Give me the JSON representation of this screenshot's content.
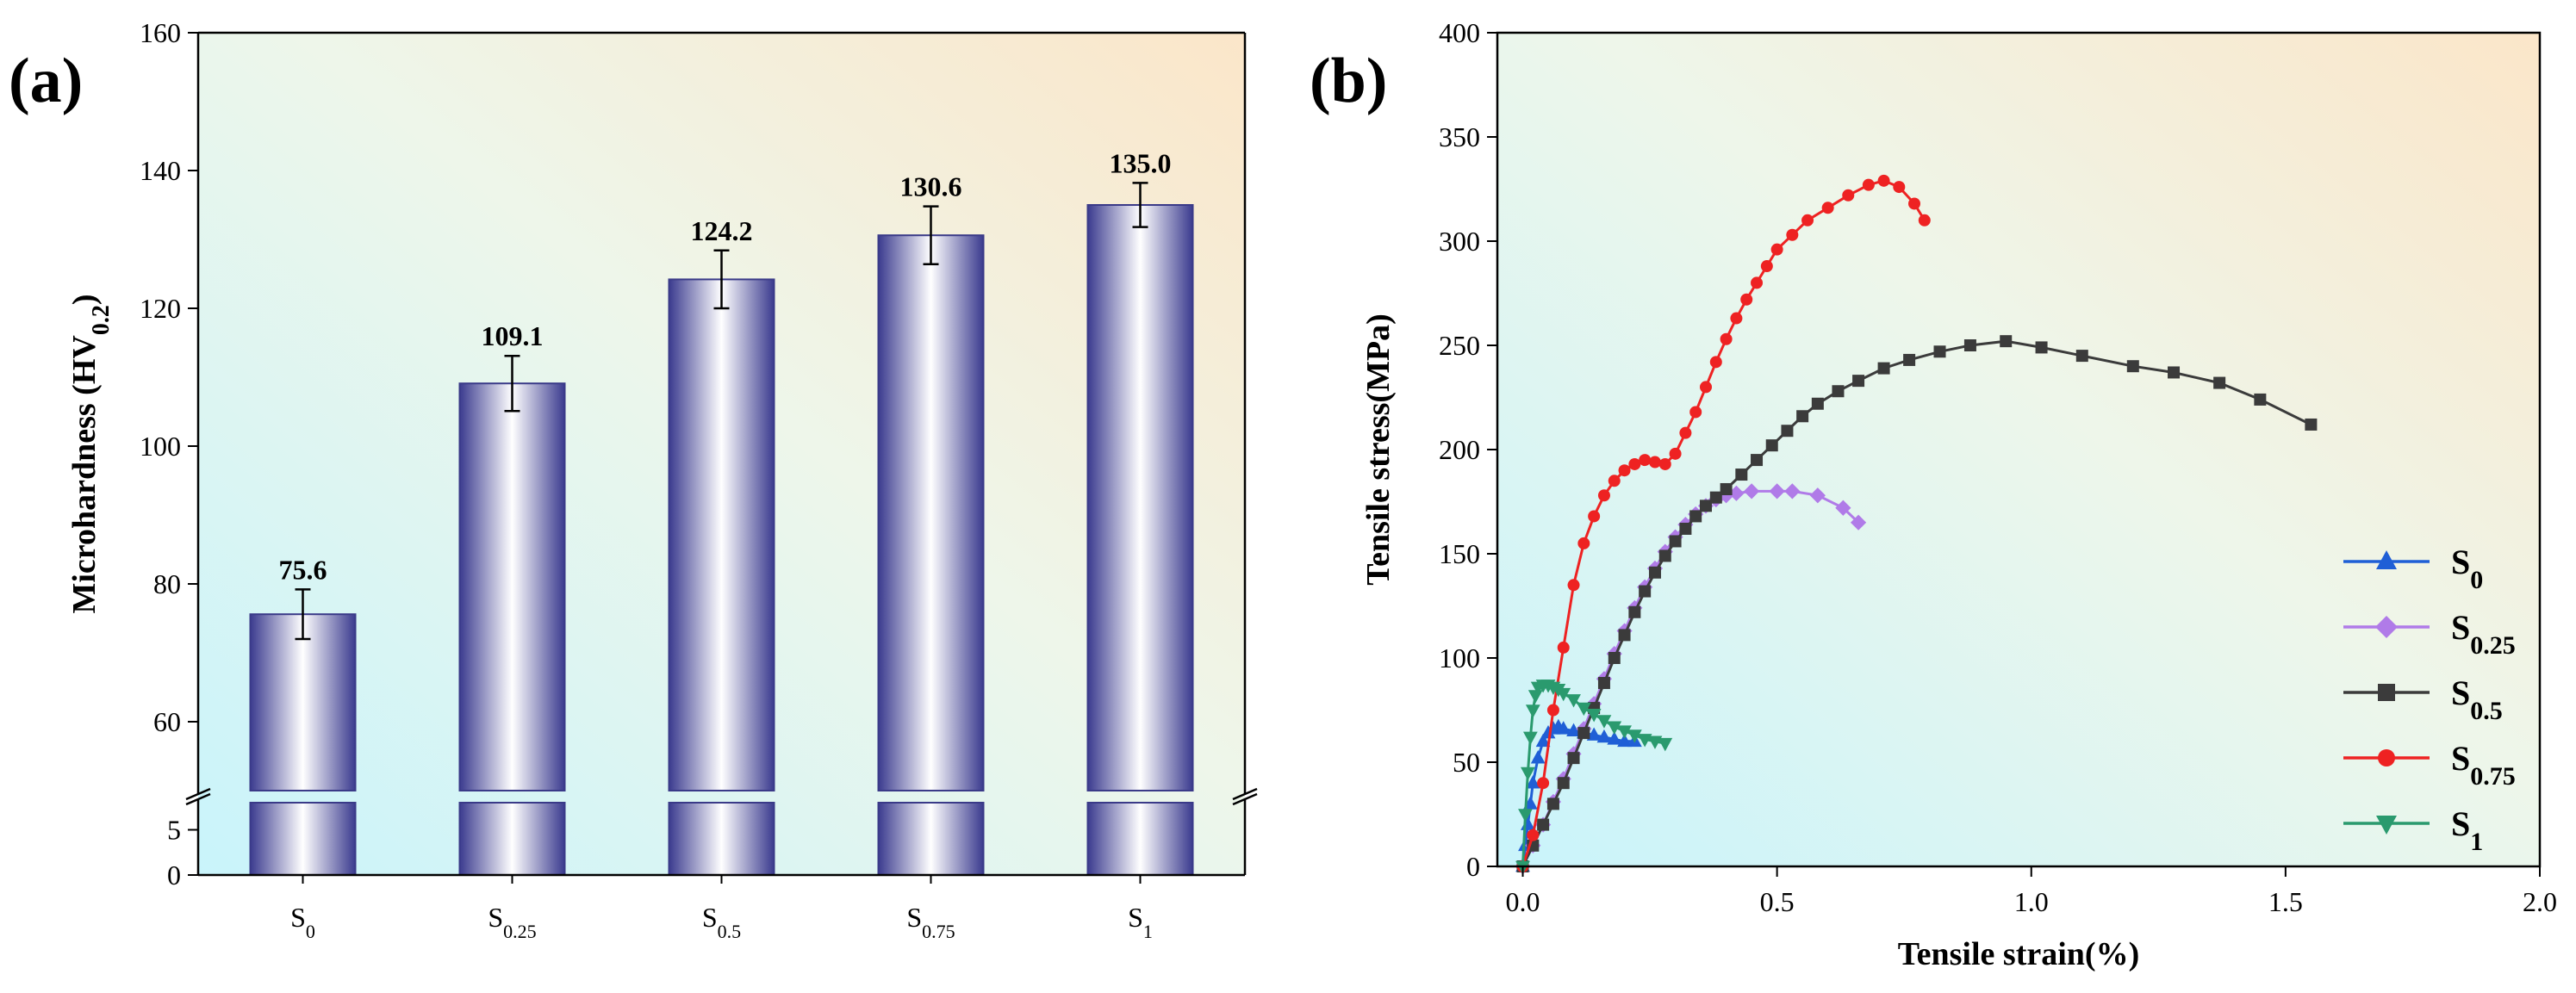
{
  "figure": {
    "panel_a_label": "(a)",
    "panel_b_label": "(b)"
  },
  "colors": {
    "axis": "#000000",
    "bar_edge": "#3a3a88",
    "S0": "#1f5fd6",
    "S0.25": "#b07be8",
    "S0.5": "#3b3b3b",
    "S0.75": "#ee2222",
    "S1": "#2a9a6e"
  },
  "chart_data": [
    {
      "type": "bar",
      "title": "",
      "xlabel": "",
      "ylabel": {
        "main": "Microhardness (HV",
        "sub": "0.2",
        "close": ")"
      },
      "categories": [
        {
          "base": "S",
          "sub": "0"
        },
        {
          "base": "S",
          "sub": "0.25"
        },
        {
          "base": "S",
          "sub": "0.5"
        },
        {
          "base": "S",
          "sub": "0.75"
        },
        {
          "base": "S",
          "sub": "1"
        }
      ],
      "values": [
        75.6,
        109.1,
        124.2,
        130.6,
        135.0
      ],
      "value_labels": [
        "75.6",
        "109.1",
        "124.2",
        "130.6",
        "135.0"
      ],
      "errors": [
        3.6,
        4.0,
        4.2,
        4.2,
        3.2
      ],
      "broken_axis": true,
      "lower_segment": {
        "ylim": [
          0,
          8
        ],
        "ticks": [
          "0",
          "5"
        ]
      },
      "upper_segment": {
        "ylim": [
          50,
          160
        ],
        "ticks": [
          "60",
          "80",
          "100",
          "120",
          "140",
          "160"
        ]
      },
      "grid": false
    },
    {
      "type": "line",
      "title": "",
      "xlabel": "Tensile strain(%)",
      "ylabel": "Tensile stress(MPa)",
      "xlim": [
        -0.05,
        2.0
      ],
      "ylim": [
        0,
        400
      ],
      "xticks": [
        "0.0",
        "0.5",
        "1.0",
        "1.5",
        "2.0"
      ],
      "yticks": [
        "0",
        "50",
        "100",
        "150",
        "200",
        "250",
        "300",
        "350",
        "400"
      ],
      "grid": false,
      "legend_position": "bottom-right",
      "series": [
        {
          "name": {
            "base": "S",
            "sub": "0"
          },
          "marker": "triangle-up",
          "x": [
            0,
            0.005,
            0.01,
            0.015,
            0.02,
            0.03,
            0.04,
            0.05,
            0.06,
            0.07,
            0.08,
            0.1,
            0.12,
            0.14,
            0.16,
            0.18,
            0.2,
            0.22
          ],
          "y": [
            0,
            10,
            20,
            30,
            40,
            52,
            60,
            64,
            66,
            67,
            66,
            65,
            64,
            63,
            62,
            61,
            60,
            60
          ]
        },
        {
          "name": {
            "base": "S",
            "sub": "0.25"
          },
          "marker": "diamond",
          "x": [
            0,
            0.02,
            0.04,
            0.06,
            0.08,
            0.1,
            0.12,
            0.14,
            0.16,
            0.18,
            0.2,
            0.22,
            0.24,
            0.26,
            0.28,
            0.3,
            0.32,
            0.34,
            0.36,
            0.38,
            0.4,
            0.42,
            0.45,
            0.5,
            0.53,
            0.58,
            0.63,
            0.66
          ],
          "y": [
            0,
            10,
            20,
            31,
            42,
            54,
            66,
            78,
            90,
            102,
            113,
            124,
            134,
            143,
            151,
            158,
            164,
            169,
            173,
            176,
            178,
            179,
            180,
            180,
            180,
            178,
            172,
            165
          ]
        },
        {
          "name": {
            "base": "S",
            "sub": "0.5"
          },
          "marker": "square",
          "x": [
            0,
            0.02,
            0.04,
            0.06,
            0.08,
            0.1,
            0.12,
            0.14,
            0.16,
            0.18,
            0.2,
            0.22,
            0.24,
            0.26,
            0.28,
            0.3,
            0.32,
            0.34,
            0.36,
            0.38,
            0.4,
            0.43,
            0.46,
            0.49,
            0.52,
            0.55,
            0.58,
            0.62,
            0.66,
            0.71,
            0.76,
            0.82,
            0.88,
            0.95,
            1.02,
            1.1,
            1.2,
            1.28,
            1.37,
            1.45,
            1.55
          ],
          "y": [
            0,
            10,
            20,
            30,
            40,
            52,
            64,
            76,
            88,
            100,
            111,
            122,
            132,
            141,
            149,
            156,
            162,
            168,
            173,
            177,
            181,
            188,
            195,
            202,
            209,
            216,
            222,
            228,
            233,
            239,
            243,
            247,
            250,
            252,
            249,
            245,
            240,
            237,
            232,
            224,
            212
          ]
        },
        {
          "name": {
            "base": "S",
            "sub": "0.75"
          },
          "marker": "circle",
          "x": [
            0,
            0.02,
            0.04,
            0.06,
            0.08,
            0.1,
            0.12,
            0.14,
            0.16,
            0.18,
            0.2,
            0.22,
            0.24,
            0.26,
            0.28,
            0.3,
            0.32,
            0.34,
            0.36,
            0.38,
            0.4,
            0.42,
            0.44,
            0.46,
            0.48,
            0.5,
            0.53,
            0.56,
            0.6,
            0.64,
            0.68,
            0.71,
            0.74,
            0.77,
            0.79
          ],
          "y": [
            0,
            15,
            40,
            75,
            105,
            135,
            155,
            168,
            178,
            185,
            190,
            193,
            195,
            194,
            193,
            198,
            208,
            218,
            230,
            242,
            253,
            263,
            272,
            280,
            288,
            296,
            303,
            310,
            316,
            322,
            327,
            329,
            326,
            318,
            310
          ]
        },
        {
          "name": {
            "base": "S",
            "sub": "1"
          },
          "marker": "triangle-down",
          "x": [
            0,
            0.005,
            0.01,
            0.015,
            0.02,
            0.025,
            0.03,
            0.04,
            0.05,
            0.06,
            0.07,
            0.08,
            0.1,
            0.12,
            0.14,
            0.16,
            0.18,
            0.2,
            0.22,
            0.24,
            0.26,
            0.28
          ],
          "y": [
            0,
            25,
            45,
            62,
            75,
            82,
            86,
            87,
            87,
            86,
            85,
            83,
            80,
            76,
            73,
            70,
            67,
            65,
            63,
            61,
            60,
            59
          ]
        }
      ]
    }
  ]
}
